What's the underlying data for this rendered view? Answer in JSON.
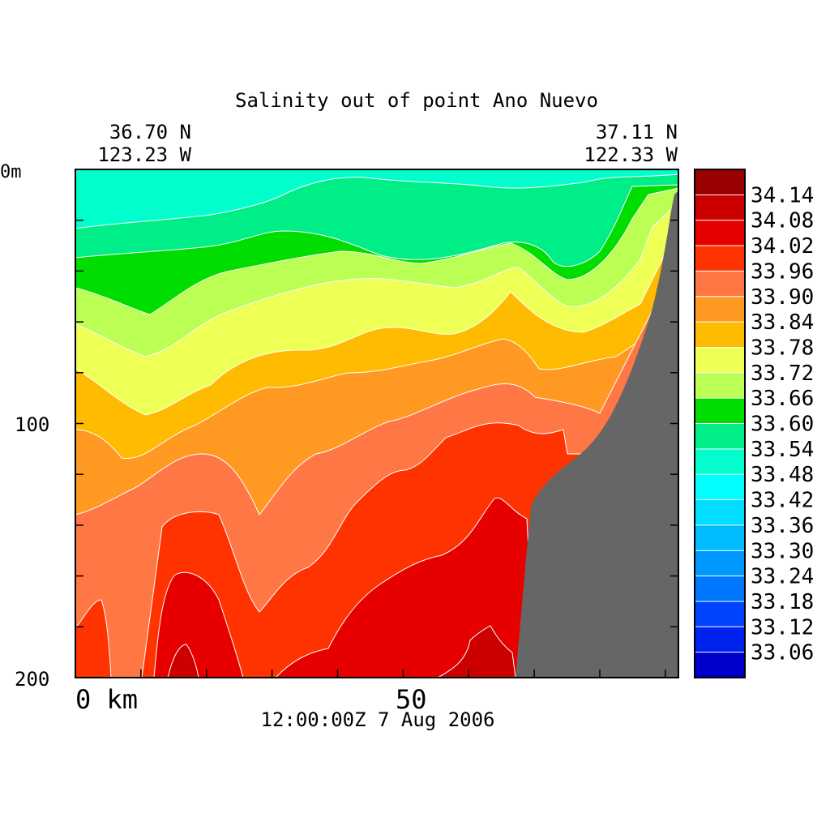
{
  "chart_data": {
    "type": "heatmap",
    "title": "Salinity out of point Ano Nuevo",
    "start_position": {
      "lat": "36.70 N",
      "lon": "123.23 W"
    },
    "end_position": {
      "lat": "37.11 N",
      "lon": "122.33 W"
    },
    "x_axis": {
      "unit": "km",
      "range": [
        0,
        92
      ],
      "tick_labels": [
        {
          "value": 0,
          "label": "0 km"
        },
        {
          "value": 50,
          "label": "50"
        }
      ]
    },
    "y_axis": {
      "unit": "m",
      "range": [
        0,
        200
      ],
      "inverted": true,
      "tick_labels": [
        {
          "value": 0,
          "label": "0m"
        },
        {
          "value": 100,
          "label": "100"
        },
        {
          "value": 200,
          "label": "200"
        }
      ]
    },
    "timestamp": "12:00:00Z   7 Aug 2006",
    "colorbar": {
      "labels": [
        "34.14",
        "34.08",
        "34.02",
        "33.96",
        "33.90",
        "33.84",
        "33.78",
        "33.72",
        "33.66",
        "33.60",
        "33.54",
        "33.48",
        "33.42",
        "33.36",
        "33.30",
        "33.24",
        "33.18",
        "33.12",
        "33.06"
      ],
      "colors": [
        "#990000",
        "#cc0000",
        "#e60000",
        "#ff3300",
        "#ff7744",
        "#ff9922",
        "#ffbb00",
        "#eeff55",
        "#bbff55",
        "#00dd00",
        "#00ee88",
        "#00ffcc",
        "#00ffff",
        "#00ddff",
        "#00bbff",
        "#0099ff",
        "#0077ff",
        "#0044ff",
        "#0022ee",
        "#0000cc"
      ]
    },
    "fields": {
      "c_3348": "#00ffcc",
      "c_3342": "#00ffff",
      "c_3354": "#00ee88",
      "c_3360": "#00dd00",
      "c_3366": "#bbff55",
      "c_3372": "#eeff55",
      "c_3378": "#ffbb00",
      "c_3384": "#ff9922",
      "c_3390": "#ff7744",
      "c_3396": "#ff3300",
      "c_3402": "#e60000",
      "c_3408": "#cc0000",
      "land": "#666666"
    }
  }
}
